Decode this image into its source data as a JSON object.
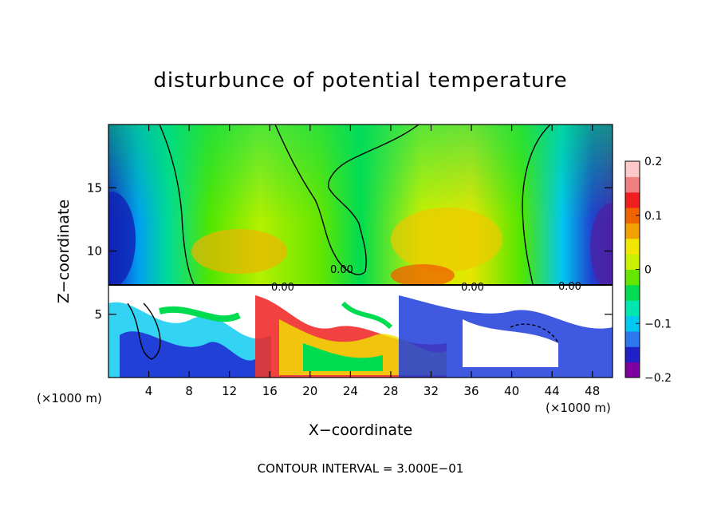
{
  "chart_data": {
    "type": "heatmap",
    "title": "disturbunce of potential temperature",
    "xlabel": "X−coordinate",
    "ylabel": "Z−coordinate",
    "x_unit": "(×1000 m)",
    "x_unit_right": "(×1000 m)",
    "xlim": [
      0,
      50
    ],
    "ylim": [
      0,
      20
    ],
    "x_ticks": [
      4,
      8,
      12,
      16,
      20,
      24,
      28,
      32,
      36,
      40,
      44,
      48
    ],
    "y_ticks": [
      5,
      10,
      15
    ],
    "colorbar": {
      "range": [
        -0.2,
        0.2
      ],
      "tick_labels": [
        "0.2",
        "0.1",
        "0",
        "−0.1",
        "−0.2"
      ],
      "tick_values": [
        0.2,
        0.1,
        0,
        -0.1,
        -0.2
      ],
      "colors": [
        "#8000a0",
        "#2020c8",
        "#2c78f0",
        "#00c8f0",
        "#00e6b0",
        "#00dc50",
        "#64e600",
        "#c8f000",
        "#f0e600",
        "#f0a000",
        "#f06400",
        "#f01e1e",
        "#f08080",
        "#fcc8c8"
      ]
    },
    "contour_labels": [
      "0.00",
      "0.00",
      "0.00",
      "0.00"
    ],
    "contour_interval_text": "CONTOUR INTERVAL = 3.000E−01"
  }
}
